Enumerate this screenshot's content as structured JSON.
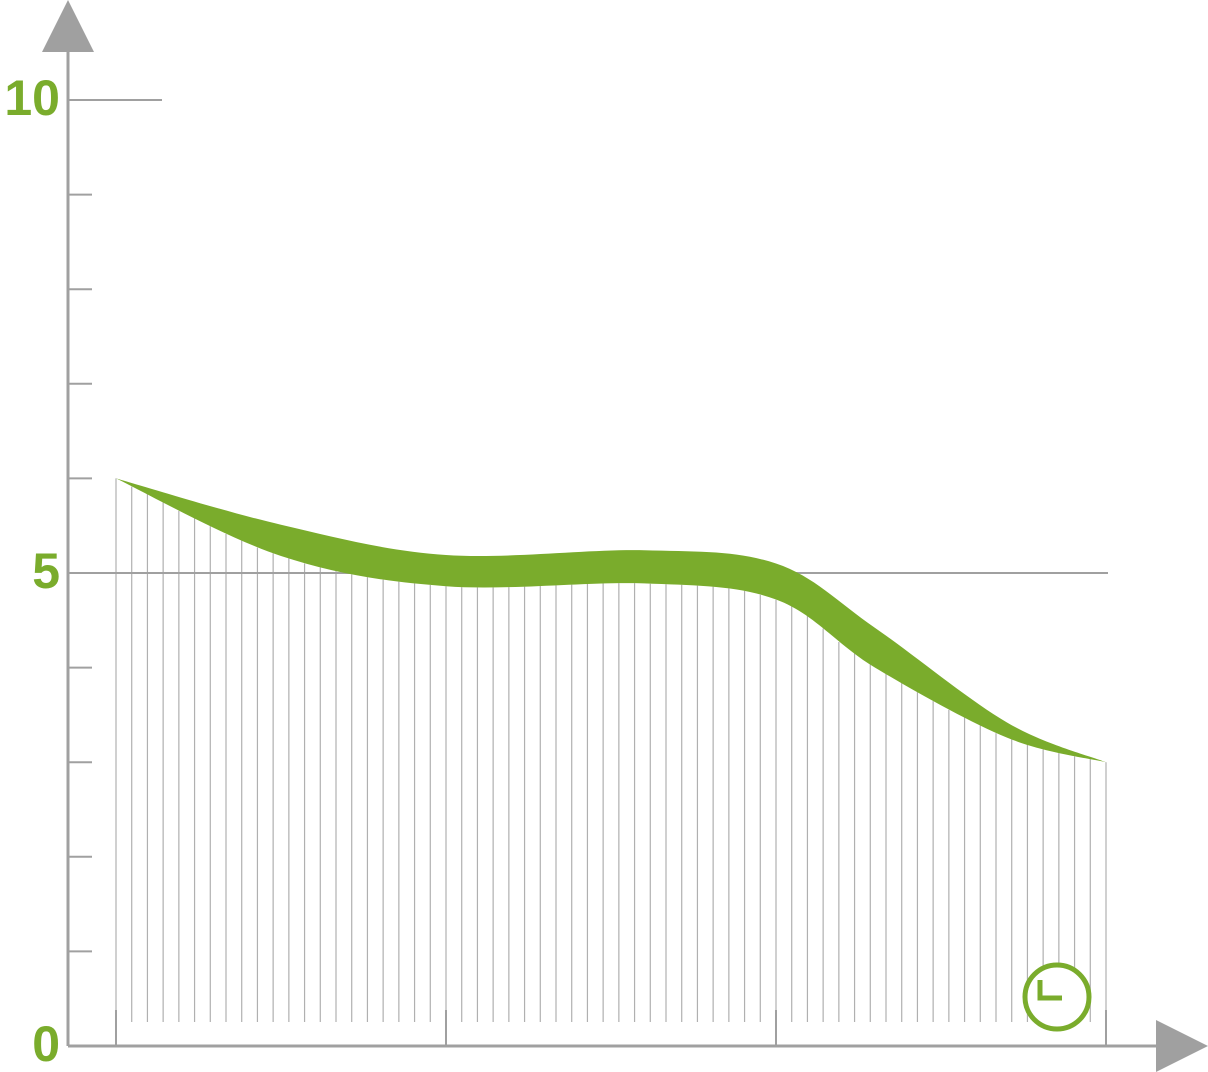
{
  "chart_data": {
    "type": "band",
    "x": [
      0,
      0.5,
      1,
      1.6,
      2,
      2.3,
      2.7,
      3
    ],
    "series": [
      {
        "color": "#7aac2c",
        "upper": [
          6.0,
          5.51,
          5.19,
          5.24,
          5.1,
          4.42,
          3.42,
          3.0
        ],
        "lower": [
          6.0,
          5.18,
          4.86,
          4.89,
          4.72,
          4.0,
          3.26,
          3.0
        ]
      }
    ],
    "xlim": [
      0,
      3
    ],
    "xticks": [
      0,
      1,
      2,
      3
    ],
    "ylim": [
      0,
      10
    ],
    "yticks": [
      0,
      5,
      10
    ],
    "yminor_ticks": [
      1,
      2,
      3,
      4,
      6,
      7,
      8,
      9
    ],
    "label_color": "#7aac2c",
    "axis_color": "#a0a0a0"
  }
}
